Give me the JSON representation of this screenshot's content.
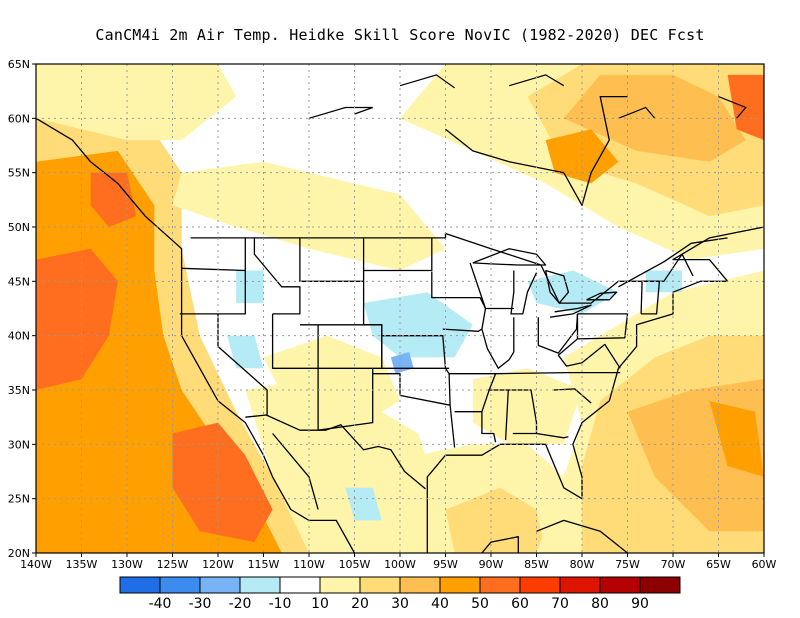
{
  "title": "CanCM4i  2m Air Temp. Heidke Skill Score NovIC (1982-2020) DEC Fcst",
  "map": {
    "lon_range": [
      -140,
      -60
    ],
    "lat_range": [
      20,
      65
    ],
    "lat_ticks": [
      "20N",
      "25N",
      "30N",
      "35N",
      "40N",
      "45N",
      "50N",
      "55N",
      "60N",
      "65N"
    ],
    "lon_ticks": [
      "140W",
      "135W",
      "130W",
      "125W",
      "120W",
      "115W",
      "110W",
      "105W",
      "100W",
      "95W",
      "90W",
      "85W",
      "80W",
      "75W",
      "70W",
      "65W",
      "60W"
    ],
    "grid": "dotted"
  },
  "colorbar": {
    "labels": [
      "-40",
      "-30",
      "-20",
      "-10",
      "10",
      "20",
      "30",
      "40",
      "50",
      "60",
      "70",
      "80",
      "90"
    ],
    "colors": [
      "#1f6ee6",
      "#3c8cf0",
      "#78b4f5",
      "#b4ebf5",
      "#ffffff",
      "#fff5aa",
      "#ffdc78",
      "#ffbe50",
      "#ffa000",
      "#ff6e1e",
      "#ff3c00",
      "#dc1400",
      "#b40000",
      "#8c0000"
    ]
  },
  "colors": {
    "land_line": "#000000",
    "low": "#fff5aa",
    "mid": "#ffdc78",
    "high": "#ffbe50",
    "hot": "#ffa000",
    "hotter": "#ff6e1e",
    "cool": "#b4ebf5",
    "cold": "#78b4f5"
  }
}
